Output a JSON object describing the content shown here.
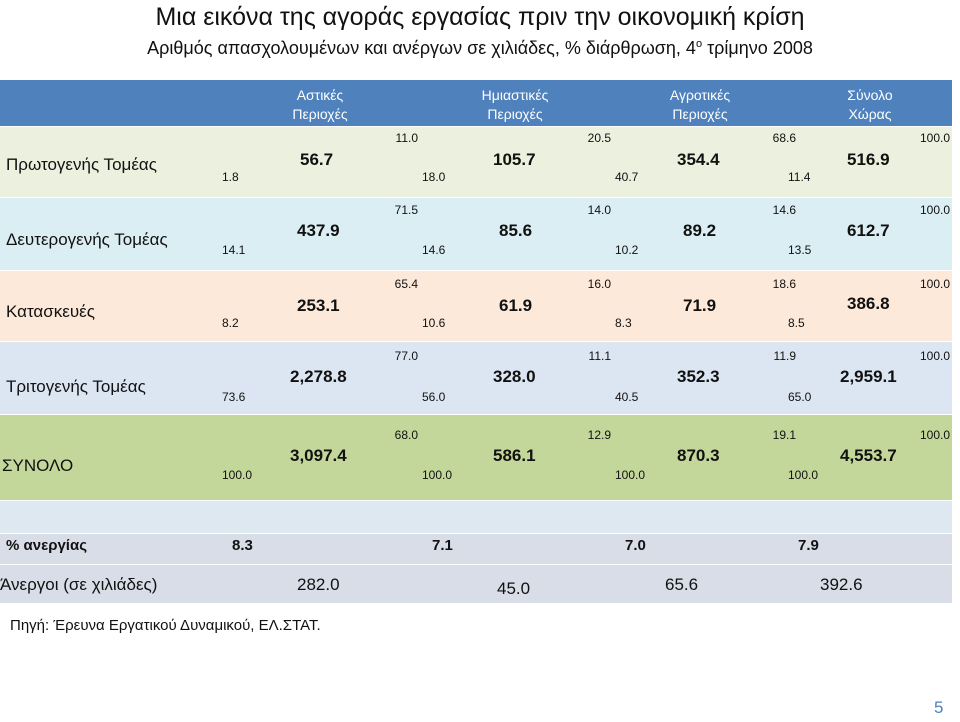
{
  "title": "Μια εικόνα της αγοράς εργασίας πριν την οικονομική κρίση",
  "subtitle": {
    "main": "Αριθμός απασχολουμένων και ανέργων σε χιλιάδες, % διάρθρωση, 4",
    "sup": "ο",
    "tail": " τρίμηνο 2008"
  },
  "header": {
    "urban": [
      "Αστικές",
      "Περιοχές"
    ],
    "semi": [
      "Ημιαστικές",
      "Περιοχές"
    ],
    "rural": [
      "Αγροτικές",
      "Περιοχές"
    ],
    "total": [
      "Σύνολο",
      "Χώρας"
    ]
  },
  "rows": [
    {
      "label": "Πρωτογενής Τομέας",
      "cells": [
        {
          "share": "1.8",
          "value": "56.7",
          "pct": "11.0"
        },
        {
          "share": "18.0",
          "value": "105.7",
          "pct": "20.5"
        },
        {
          "share": "40.7",
          "value": "354.4",
          "pct": "68.6"
        },
        {
          "share": "11.4",
          "value": "516.9",
          "pct": "100.0"
        }
      ]
    },
    {
      "label": "Δευτερογενής Τομέας",
      "cells": [
        {
          "share": "14.1",
          "value": "437.9",
          "pct": "71.5"
        },
        {
          "share": "14.6",
          "value": "85.6",
          "pct": "14.0"
        },
        {
          "share": "10.2",
          "value": "89.2",
          "pct": "14.6"
        },
        {
          "share": "13.5",
          "value": "612.7",
          "pct": "100.0"
        }
      ]
    },
    {
      "label": "Κατασκευές",
      "cells": [
        {
          "share": "8.2",
          "value": "253.1",
          "pct": "65.4"
        },
        {
          "share": "10.6",
          "value": "61.9",
          "pct": "16.0"
        },
        {
          "share": "8.3",
          "value": "71.9",
          "pct": "18.6"
        },
        {
          "share": "8.5",
          "value": "386.8",
          "pct": "100.0"
        }
      ]
    },
    {
      "label": "Τριτογενής Τομέας",
      "cells": [
        {
          "share": "73.6",
          "value": "2,278.8",
          "pct": "77.0"
        },
        {
          "share": "56.0",
          "value": "328.0",
          "pct": "11.1"
        },
        {
          "share": "40.5",
          "value": "352.3",
          "pct": "11.9"
        },
        {
          "share": "65.0",
          "value": "2,959.1",
          "pct": "100.0"
        }
      ]
    },
    {
      "label": "ΣΥΝΟΛΟ",
      "cells": [
        {
          "share": "100.0",
          "value": "3,097.4",
          "pct": "68.0"
        },
        {
          "share": "100.0",
          "value": "586.1",
          "pct": "12.9"
        },
        {
          "share": "100.0",
          "value": "870.3",
          "pct": "19.1"
        },
        {
          "share": "100.0",
          "value": "4,553.7",
          "pct": "100.0"
        }
      ]
    }
  ],
  "unemployment_rate": {
    "label": "% ανεργίας",
    "values": [
      "8.3",
      "7.1",
      "7.0",
      "7.9"
    ]
  },
  "unemployed": {
    "label": "Άνεργοι (σε χιλιάδες)",
    "values": [
      "282.0",
      "45.0",
      "65.6",
      "392.6"
    ]
  },
  "source": "Πηγή: Έρευνα Εργατικού Δυναμικού, ΕΛ.ΣΤΑΤ.",
  "page_number": "5",
  "colors": {
    "header": "#4f81bd",
    "primary_row": "#ebf1de",
    "secondary_row": "#dbeef4",
    "construction_row": "#fde9d9",
    "tertiary_row": "#dce6f2",
    "total_row": "#c4d79b",
    "spacer_row": "#dde8f0",
    "unemployment_rows": "#d9dde8"
  }
}
